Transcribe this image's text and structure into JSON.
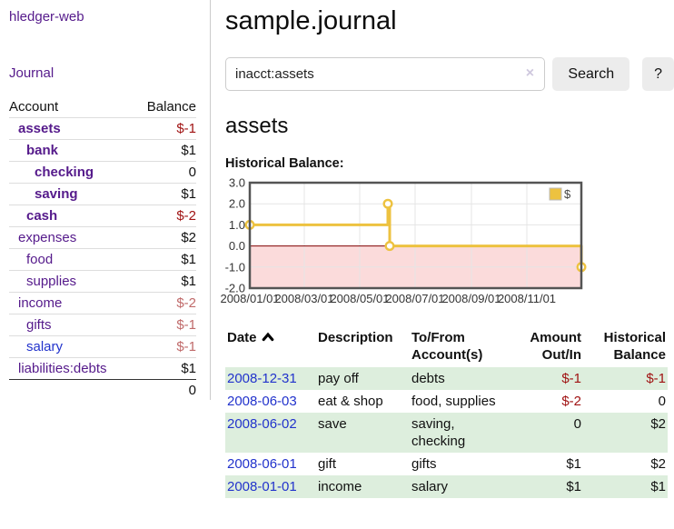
{
  "brand": "hledger-web",
  "sidebar": {
    "journal_link": "Journal",
    "accounts": {
      "header": {
        "account": "Account",
        "balance": "Balance"
      },
      "rows": [
        {
          "name": "assets",
          "indent": 0,
          "bold": true,
          "balance": "$-1",
          "balance_style": "neg",
          "link_style": "purple"
        },
        {
          "name": "bank",
          "indent": 1,
          "bold": true,
          "balance": "$1",
          "balance_style": "pos",
          "link_style": "purple"
        },
        {
          "name": "checking",
          "indent": 2,
          "bold": true,
          "balance": "0",
          "balance_style": "pos",
          "link_style": "purple"
        },
        {
          "name": "saving",
          "indent": 2,
          "bold": true,
          "balance": "$1",
          "balance_style": "pos",
          "link_style": "purple"
        },
        {
          "name": "cash",
          "indent": 1,
          "bold": true,
          "balance": "$-2",
          "balance_style": "neg",
          "link_style": "purple"
        },
        {
          "name": "expenses",
          "indent": 0,
          "bold": false,
          "balance": "$2",
          "balance_style": "pos",
          "link_style": "purple"
        },
        {
          "name": "food",
          "indent": 1,
          "bold": false,
          "balance": "$1",
          "balance_style": "pos",
          "link_style": "purple"
        },
        {
          "name": "supplies",
          "indent": 1,
          "bold": false,
          "balance": "$1",
          "balance_style": "pos",
          "link_style": "purple"
        },
        {
          "name": "income",
          "indent": 0,
          "bold": false,
          "balance": "$-2",
          "balance_style": "softneg",
          "link_style": "purple"
        },
        {
          "name": "gifts",
          "indent": 1,
          "bold": false,
          "balance": "$-1",
          "balance_style": "softneg",
          "link_style": "purple"
        },
        {
          "name": "salary",
          "indent": 1,
          "bold": false,
          "balance": "$-1",
          "balance_style": "softneg",
          "link_style": "blue"
        },
        {
          "name": "liabilities:debts",
          "indent": 0,
          "bold": false,
          "balance": "$1",
          "balance_style": "pos",
          "link_style": "purple"
        }
      ],
      "total": "0"
    }
  },
  "main": {
    "title": "sample.journal",
    "search": {
      "value": "inacct:assets",
      "clear": "×",
      "search_button": "Search",
      "help_button": "?"
    },
    "account_heading": "assets",
    "chart_title": "Historical Balance:"
  },
  "chart_data": {
    "type": "line",
    "title": "Historical Balance",
    "series": [
      {
        "name": "$",
        "color": "#edc240",
        "step": true,
        "points": [
          [
            "2008-01-01",
            1
          ],
          [
            "2008-06-01",
            2
          ],
          [
            "2008-06-03",
            0
          ],
          [
            "2008-12-31",
            -1
          ]
        ]
      }
    ],
    "x_range": [
      "2008-01-01",
      "2008-12-31"
    ],
    "x_ticks": [
      "2008/01/01",
      "2008/03/01",
      "2008/05/01",
      "2008/07/01",
      "2008/09/01",
      "2008/11/01"
    ],
    "y_ticks": [
      "3.0",
      "2.0",
      "1.0",
      "0.0",
      "-1.0",
      "-2.0"
    ],
    "ylim": [
      -2,
      3
    ],
    "grid": true,
    "legend": "$",
    "legend_position": "top-right",
    "negative_region_color": "#fbdbdb",
    "zero_line_color": "#800000",
    "border_color": "#545454",
    "grid_color": "#e5e5e5"
  },
  "register": {
    "headers": {
      "date": "Date",
      "description": "Description",
      "tofrom": "To/From Account(s)",
      "amount": "Amount Out/In",
      "balance": "Historical Balance"
    },
    "rows": [
      {
        "date": "2008-12-31",
        "description": "pay off",
        "accounts": "debts",
        "amount": "$-1",
        "amount_style": "neg",
        "balance": "$-1",
        "balance_style": "neg",
        "shaded": true
      },
      {
        "date": "2008-06-03",
        "description": "eat & shop",
        "accounts": "food, supplies",
        "amount": "$-2",
        "amount_style": "neg",
        "balance": "0",
        "balance_style": "pos",
        "shaded": false
      },
      {
        "date": "2008-06-02",
        "description": "save",
        "accounts": "saving, checking",
        "amount": "0",
        "amount_style": "pos",
        "balance": "$2",
        "balance_style": "pos",
        "shaded": true
      },
      {
        "date": "2008-06-01",
        "description": "gift",
        "accounts": "gifts",
        "amount": "$1",
        "amount_style": "pos",
        "balance": "$2",
        "balance_style": "pos",
        "shaded": false
      },
      {
        "date": "2008-01-01",
        "description": "income",
        "accounts": "salary",
        "amount": "$1",
        "amount_style": "pos",
        "balance": "$1",
        "balance_style": "pos",
        "shaded": true
      }
    ]
  },
  "colors": {
    "accent_purple": "#551a8b",
    "link_blue": "#2233cc",
    "negative": "#a01313",
    "soft_negative": "#c06a6a",
    "row_green": "#ddeedd",
    "chart_line": "#edc240"
  }
}
